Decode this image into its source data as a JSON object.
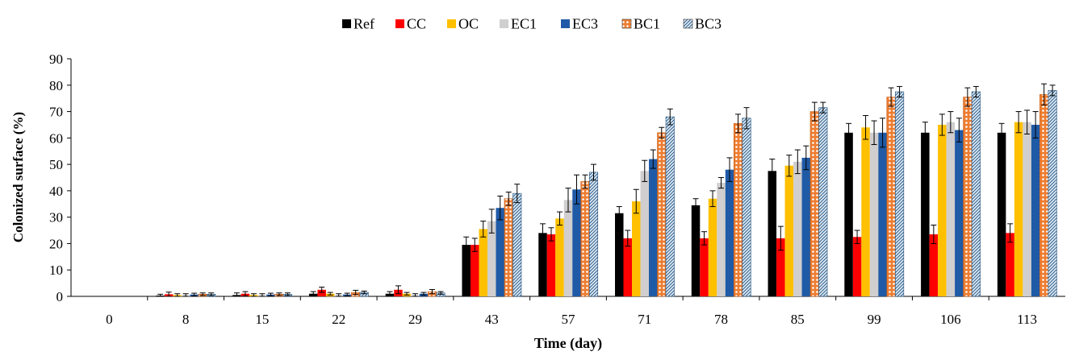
{
  "chart_data": {
    "type": "bar",
    "title": "",
    "xlabel": "Time (day)",
    "ylabel": "Colonized surface (%)",
    "ylim": [
      0,
      90
    ],
    "yticks": [
      0,
      10,
      20,
      30,
      40,
      50,
      60,
      70,
      80,
      90
    ],
    "grid": false,
    "legend_position": "top-center",
    "categories": [
      "0",
      "8",
      "15",
      "22",
      "29",
      "43",
      "57",
      "71",
      "78",
      "85",
      "99",
      "106",
      "113"
    ],
    "series": [
      {
        "name": "Ref",
        "color": "#000000",
        "pattern": "solid",
        "values": [
          0,
          0.3,
          0.5,
          1.0,
          1.0,
          19.5,
          24.0,
          31.5,
          34.5,
          47.5,
          62.0,
          62.0,
          62.0
        ],
        "errors": [
          0,
          0.5,
          0.8,
          0.8,
          0.8,
          3.0,
          3.5,
          2.5,
          2.5,
          4.5,
          3.5,
          4.0,
          3.5
        ]
      },
      {
        "name": "CC",
        "color": "#ff0000",
        "pattern": "solid",
        "values": [
          0,
          0.8,
          1.0,
          2.5,
          2.5,
          19.5,
          23.5,
          22.0,
          22.0,
          22.0,
          22.5,
          23.5,
          24.0
        ],
        "errors": [
          0,
          0.8,
          0.8,
          1.0,
          1.5,
          2.5,
          2.5,
          3.0,
          2.5,
          4.5,
          2.5,
          3.5,
          3.5
        ]
      },
      {
        "name": "OC",
        "color": "#ffc000",
        "pattern": "solid",
        "values": [
          0,
          0.5,
          0.5,
          1.0,
          1.0,
          25.5,
          29.5,
          36.0,
          37.0,
          49.5,
          64.0,
          65.0,
          66.0
        ],
        "errors": [
          0,
          0.5,
          0.5,
          0.5,
          0.5,
          3.0,
          2.5,
          4.5,
          3.0,
          4.0,
          4.5,
          4.0,
          4.0
        ]
      },
      {
        "name": "EC1",
        "color": "#d0cece",
        "pattern": "solid",
        "values": [
          0,
          0.5,
          0.5,
          0.5,
          0.5,
          28.5,
          36.5,
          47.5,
          43.0,
          51.0,
          62.0,
          66.0,
          66.0
        ],
        "errors": [
          0,
          0.5,
          0.5,
          0.5,
          0.5,
          4.5,
          4.5,
          4.0,
          2.0,
          4.5,
          4.5,
          4.0,
          4.5
        ]
      },
      {
        "name": "EC3",
        "color": "#1f5aa6",
        "pattern": "solid",
        "values": [
          0,
          0.7,
          0.7,
          0.7,
          1.0,
          33.5,
          40.5,
          52.0,
          48.0,
          52.5,
          62.0,
          63.0,
          65.0
        ],
        "errors": [
          0,
          0.5,
          0.5,
          0.5,
          0.5,
          4.5,
          5.5,
          3.5,
          4.5,
          4.5,
          5.5,
          4.5,
          5.0
        ]
      },
      {
        "name": "BC1",
        "color": "#ed7d31",
        "pattern": "dots",
        "values": [
          0,
          0.8,
          0.8,
          1.5,
          1.8,
          37.0,
          43.5,
          62.0,
          65.5,
          70.0,
          75.5,
          75.5,
          76.5
        ],
        "errors": [
          0,
          0.5,
          0.5,
          0.8,
          0.8,
          2.5,
          2.5,
          2.0,
          3.5,
          3.5,
          3.5,
          3.5,
          4.0
        ]
      },
      {
        "name": "BC3",
        "color": "#bdd7ee",
        "pattern": "hatch",
        "values": [
          0,
          0.8,
          0.8,
          1.5,
          1.3,
          39.0,
          47.0,
          68.0,
          67.5,
          71.5,
          77.5,
          77.5,
          78.0
        ],
        "errors": [
          0,
          0.5,
          0.5,
          0.5,
          0.5,
          3.5,
          3.0,
          3.0,
          4.0,
          2.0,
          2.0,
          2.0,
          2.0
        ]
      }
    ]
  }
}
